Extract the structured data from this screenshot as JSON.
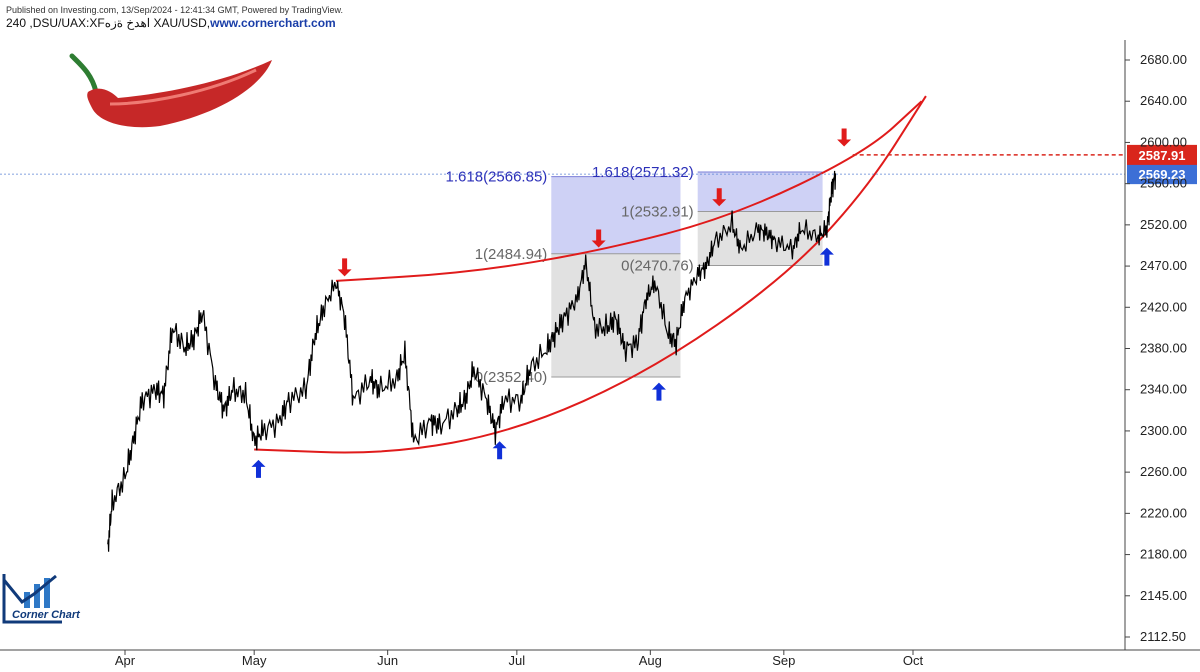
{
  "header": {
    "published": "Published on Investing.com, 13/Sep/2024 - 12:41:34 GMT, Powered by TradingView.",
    "symbol": "240 ,DSU/UAX:XFاهدخ ةزه XAU/USD,",
    "site": "www.cornerchart.com"
  },
  "logo": {
    "text": "Corner Chart",
    "icon": "corner-chart-logo"
  },
  "pepper": {
    "icon": "red-chili-pepper"
  },
  "colors": {
    "curve": "#e01b1b",
    "up_arrow": "#1030d8",
    "down_arrow": "#e01b1b",
    "fib_box_blue": "#c9ccf4",
    "fib_box_gray": "#dedede",
    "fib_text_blue": "#2b2fb8",
    "fib_text_gray": "#666666",
    "current_price_tag": "#3c6fd6",
    "target_price_tag": "#d9261c"
  },
  "chart_data": {
    "type": "line",
    "title": "",
    "xlabel": "",
    "ylabel": "",
    "x_ticks": [
      "Apr",
      "May",
      "Jun",
      "Jul",
      "Aug",
      "Sep",
      "Oct"
    ],
    "y_ticks": [
      "2680.00",
      "2640.00",
      "2600.00",
      "2560.00",
      "2520.00",
      "2470.00",
      "2420.00",
      "2380.00",
      "2340.00",
      "2300.00",
      "2260.00",
      "2220.00",
      "2180.00",
      "2145.00",
      "2112.50"
    ],
    "ylim": [
      2112.5,
      2680.0
    ],
    "price_series": [
      [
        "2024-03-28",
        2185
      ],
      [
        "2024-03-29",
        2230
      ],
      [
        "2024-04-01",
        2255
      ],
      [
        "2024-04-03",
        2292
      ],
      [
        "2024-04-05",
        2330
      ],
      [
        "2024-04-08",
        2340
      ],
      [
        "2024-04-10",
        2335
      ],
      [
        "2024-04-12",
        2400
      ],
      [
        "2024-04-15",
        2380
      ],
      [
        "2024-04-17",
        2390
      ],
      [
        "2024-04-19",
        2415
      ],
      [
        "2024-04-22",
        2345
      ],
      [
        "2024-04-24",
        2320
      ],
      [
        "2024-04-26",
        2340
      ],
      [
        "2024-04-29",
        2335
      ],
      [
        "2024-05-01",
        2290
      ],
      [
        "2024-05-03",
        2300
      ],
      [
        "2024-05-07",
        2310
      ],
      [
        "2024-05-09",
        2330
      ],
      [
        "2024-05-13",
        2340
      ],
      [
        "2024-05-15",
        2390
      ],
      [
        "2024-05-17",
        2418
      ],
      [
        "2024-05-20",
        2450
      ],
      [
        "2024-05-22",
        2410
      ],
      [
        "2024-05-24",
        2330
      ],
      [
        "2024-05-28",
        2350
      ],
      [
        "2024-05-30",
        2340
      ],
      [
        "2024-06-03",
        2350
      ],
      [
        "2024-06-05",
        2375
      ],
      [
        "2024-06-07",
        2290
      ],
      [
        "2024-06-11",
        2310
      ],
      [
        "2024-06-13",
        2305
      ],
      [
        "2024-06-17",
        2320
      ],
      [
        "2024-06-19",
        2330
      ],
      [
        "2024-06-21",
        2360
      ],
      [
        "2024-06-24",
        2330
      ],
      [
        "2024-06-26",
        2300
      ],
      [
        "2024-06-28",
        2330
      ],
      [
        "2024-07-02",
        2330
      ],
      [
        "2024-07-04",
        2360
      ],
      [
        "2024-07-08",
        2380
      ],
      [
        "2024-07-10",
        2395
      ],
      [
        "2024-07-12",
        2410
      ],
      [
        "2024-07-15",
        2430
      ],
      [
        "2024-07-17",
        2475
      ],
      [
        "2024-07-19",
        2400
      ],
      [
        "2024-07-22",
        2400
      ],
      [
        "2024-07-24",
        2410
      ],
      [
        "2024-07-26",
        2380
      ],
      [
        "2024-07-29",
        2385
      ],
      [
        "2024-07-31",
        2430
      ],
      [
        "2024-08-02",
        2450
      ],
      [
        "2024-08-05",
        2395
      ],
      [
        "2024-08-07",
        2385
      ],
      [
        "2024-08-09",
        2430
      ],
      [
        "2024-08-12",
        2460
      ],
      [
        "2024-08-14",
        2470
      ],
      [
        "2024-08-16",
        2500
      ],
      [
        "2024-08-20",
        2520
      ],
      [
        "2024-08-22",
        2490
      ],
      [
        "2024-08-26",
        2515
      ],
      [
        "2024-08-28",
        2510
      ],
      [
        "2024-08-30",
        2500
      ],
      [
        "2024-09-03",
        2490
      ],
      [
        "2024-09-05",
        2515
      ],
      [
        "2024-09-09",
        2505
      ],
      [
        "2024-09-11",
        2515
      ],
      [
        "2024-09-12",
        2550
      ],
      [
        "2024-09-13",
        2570
      ]
    ],
    "fib_boxes": [
      {
        "from": "2024-07-09",
        "to": "2024-08-08",
        "low": 2352.4,
        "mid": 2484.94,
        "high": 2566.85,
        "low_label": "0(2352.40)",
        "mid_label": "1(2484.94)",
        "high_label": "1.618(2566.85)"
      },
      {
        "from": "2024-08-12",
        "to": "2024-09-10",
        "low": 2470.76,
        "mid": 2532.91,
        "high": 2571.32,
        "low_label": "0(2470.76)",
        "mid_label": "1(2532.91)",
        "high_label": "1.618(2571.32)"
      }
    ],
    "upper_curve": [
      [
        "2024-05-20",
        2452
      ],
      [
        "2024-06-20",
        2462
      ],
      [
        "2024-07-20",
        2488
      ],
      [
        "2024-08-20",
        2528
      ],
      [
        "2024-09-20",
        2590
      ],
      [
        "2024-10-03",
        2640
      ]
    ],
    "lower_curve": [
      [
        "2024-05-01",
        2282
      ],
      [
        "2024-06-01",
        2277
      ],
      [
        "2024-07-01",
        2300
      ],
      [
        "2024-08-01",
        2358
      ],
      [
        "2024-09-01",
        2455
      ],
      [
        "2024-09-20",
        2553
      ],
      [
        "2024-10-04",
        2645
      ]
    ],
    "up_arrows": [
      [
        "2024-05-02",
        2270
      ],
      [
        "2024-06-27",
        2288
      ],
      [
        "2024-08-03",
        2345
      ],
      [
        "2024-09-11",
        2490
      ]
    ],
    "down_arrows": [
      [
        "2024-05-22",
        2460
      ],
      [
        "2024-07-20",
        2495
      ],
      [
        "2024-08-17",
        2540
      ],
      [
        "2024-09-15",
        2598
      ]
    ],
    "current_price": {
      "value": 2569.23,
      "label": "2569.23"
    },
    "target_price": {
      "value": 2587.91,
      "label": "2587.91",
      "from": "2024-09-17"
    }
  }
}
